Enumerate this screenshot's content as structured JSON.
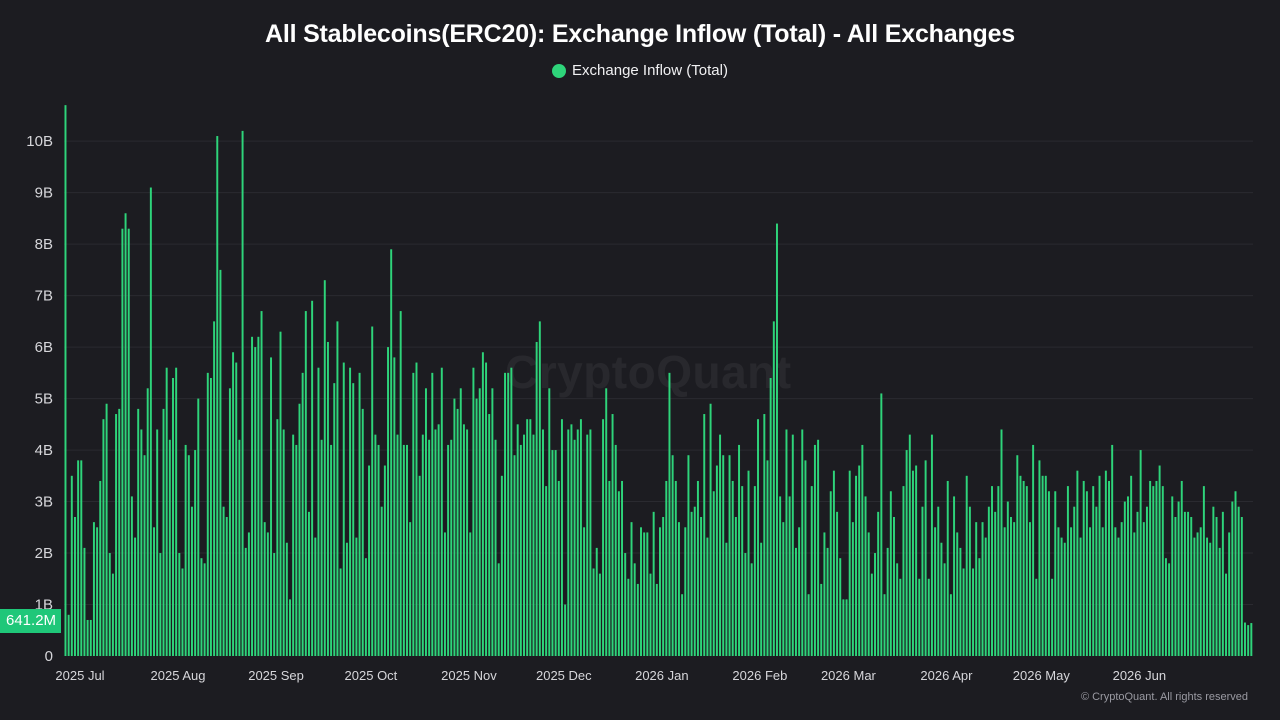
{
  "colors": {
    "background": "#1c1c21",
    "bar": "#2ed47a",
    "grid": "#2a2a30",
    "axis_text": "#d6d6da",
    "badge": "#1fc779"
  },
  "legend": {
    "label": "Exchange Inflow (Total)"
  },
  "current_value_label": "641.2M",
  "footer": {
    "text": "© CryptoQuant. All rights reserved"
  },
  "watermark": "CryptoQuant",
  "chart_data": {
    "type": "bar",
    "title": "All Stablecoins(ERC20): Exchange Inflow (Total) - All Exchanges",
    "series_name": "Exchange Inflow (Total)",
    "unit": "USD",
    "ylim": [
      0,
      10800000000
    ],
    "y_ticks": [
      {
        "value": 0,
        "label": "0"
      },
      {
        "value": 1000000000,
        "label": "1B"
      },
      {
        "value": 2000000000,
        "label": "2B"
      },
      {
        "value": 3000000000,
        "label": "3B"
      },
      {
        "value": 4000000000,
        "label": "4B"
      },
      {
        "value": 5000000000,
        "label": "5B"
      },
      {
        "value": 6000000000,
        "label": "6B"
      },
      {
        "value": 7000000000,
        "label": "7B"
      },
      {
        "value": 8000000000,
        "label": "8B"
      },
      {
        "value": 9000000000,
        "label": "9B"
      },
      {
        "value": 10000000000,
        "label": "10B"
      }
    ],
    "x_ticks": [
      {
        "index": 0,
        "label": "2025 Jul"
      },
      {
        "index": 31,
        "label": "2025 Aug"
      },
      {
        "index": 62,
        "label": "2025 Sep"
      },
      {
        "index": 92,
        "label": "2025 Oct"
      },
      {
        "index": 123,
        "label": "2025 Nov"
      },
      {
        "index": 153,
        "label": "2025 Dec"
      },
      {
        "index": 184,
        "label": "2026 Jan"
      },
      {
        "index": 215,
        "label": "2026 Feb"
      },
      {
        "index": 243,
        "label": "2026 Mar"
      },
      {
        "index": 274,
        "label": "2026 Apr"
      },
      {
        "index": 304,
        "label": "2026 May"
      },
      {
        "index": 335,
        "label": "2026 Jun"
      }
    ],
    "grid": true,
    "legend_position": "top-center",
    "x_start": "2025-07-01",
    "x_end": "2026-06-28",
    "values_billion": [
      10.7,
      0.8,
      3.5,
      2.7,
      3.8,
      3.8,
      2.1,
      0.7,
      0.7,
      2.6,
      2.5,
      3.4,
      4.6,
      4.9,
      2,
      1.6,
      4.7,
      4.8,
      8.3,
      8.6,
      8.3,
      3.1,
      2.3,
      4.8,
      4.4,
      3.9,
      5.2,
      9.1,
      2.5,
      4.4,
      2,
      4.8,
      5.6,
      4.2,
      5.4,
      5.6,
      2,
      1.7,
      4.1,
      3.9,
      2.9,
      4,
      5,
      1.9,
      1.8,
      5.5,
      5.4,
      6.5,
      10.1,
      7.5,
      2.9,
      2.7,
      5.2,
      5.9,
      5.7,
      4.2,
      10.2,
      2.1,
      2.4,
      6.2,
      6,
      6.2,
      6.7,
      2.6,
      2.4,
      5.8,
      2,
      4.6,
      6.3,
      4.4,
      2.2,
      1.1,
      4.3,
      4.1,
      4.9,
      5.5,
      6.7,
      2.8,
      6.9,
      2.3,
      5.6,
      4.2,
      7.3,
      6.1,
      4.1,
      5.3,
      6.5,
      1.7,
      5.7,
      2.2,
      5.6,
      5.3,
      2.3,
      5.5,
      4.8,
      1.9,
      3.7,
      6.4,
      4.3,
      4.1,
      2.9,
      3.7,
      6,
      7.9,
      5.8,
      4.3,
      6.7,
      4.1,
      4.1,
      2.6,
      5.5,
      5.7,
      3.5,
      4.3,
      5.2,
      4.2,
      5.5,
      4.4,
      4.5,
      5.6,
      2.4,
      4.1,
      4.2,
      5,
      4.8,
      5.2,
      4.5,
      4.4,
      2.4,
      5.6,
      5,
      5.2,
      5.9,
      5.7,
      4.7,
      5.2,
      4.2,
      1.8,
      3.5,
      5.5,
      5.5,
      5.6,
      3.9,
      4.5,
      4.1,
      4.3,
      4.6,
      4.6,
      4.3,
      6.1,
      6.5,
      4.4,
      3.3,
      5.2,
      4,
      4,
      3.4,
      4.6,
      1,
      4.4,
      4.5,
      4.2,
      4.4,
      4.6,
      2.5,
      4.3,
      4.4,
      1.7,
      2.1,
      1.6,
      4.6,
      5.2,
      3.4,
      4.7,
      4.1,
      3.2,
      3.4,
      2,
      1.5,
      2.6,
      1.8,
      1.4,
      2.5,
      2.4,
      2.4,
      1.6,
      2.8,
      1.4,
      2.5,
      2.7,
      3.4,
      5.5,
      3.9,
      3.4,
      2.6,
      1.2,
      2.5,
      3.9,
      2.8,
      2.9,
      3.4,
      2.7,
      4.7,
      2.3,
      4.9,
      3.2,
      3.7,
      4.3,
      3.9,
      2.2,
      3.9,
      3.4,
      2.7,
      4.1,
      3.3,
      2,
      3.6,
      1.8,
      3.3,
      4.6,
      2.2,
      4.7,
      3.8,
      5.4,
      6.5,
      8.4,
      3.1,
      2.6,
      4.4,
      3.1,
      4.3,
      2.1,
      2.5,
      4.4,
      3.8,
      1.2,
      3.3,
      4.1,
      4.2,
      1.4,
      2.4,
      2.1,
      3.2,
      3.6,
      2.8,
      1.9,
      1.1,
      1.1,
      3.6,
      2.6,
      3.5,
      3.7,
      4.1,
      3.1,
      2.4,
      1.6,
      2,
      2.8,
      5.1,
      1.2,
      2.1,
      3.2,
      2.7,
      1.8,
      1.5,
      3.3,
      4,
      4.3,
      3.6,
      3.7,
      1.5,
      2.9,
      3.8,
      1.5,
      4.3,
      2.5,
      2.9,
      2.2,
      1.8,
      3.4,
      1.2,
      3.1,
      2.4,
      2.1,
      1.7,
      3.5,
      2.9,
      1.7,
      2.6,
      1.9,
      2.6,
      2.3,
      2.9,
      3.3,
      2.8,
      3.3,
      4.4,
      2.5,
      3,
      2.7,
      2.6,
      3.9,
      3.5,
      3.4,
      3.3,
      2.6,
      4.1,
      1.5,
      3.8,
      3.5,
      3.5,
      3.2,
      1.5,
      3.2,
      2.5,
      2.3,
      2.2,
      3.3,
      2.5,
      2.9,
      3.6,
      2.3,
      3.4,
      3.2,
      2.5,
      3.3,
      2.9,
      3.5,
      2.5,
      3.6,
      3.4,
      4.1,
      2.5,
      2.3,
      2.6,
      3,
      3.1,
      3.5,
      2.4,
      2.8,
      4,
      2.6,
      2.9,
      3.4,
      3.3,
      3.4,
      3.7,
      3.3,
      1.9,
      1.8,
      3.1,
      2.7,
      3,
      3.4,
      2.8,
      2.8,
      2.7,
      2.3,
      2.4,
      2.5,
      3.3,
      2.3,
      2.2,
      2.9,
      2.7,
      2.1,
      2.8,
      1.6,
      2.4,
      3,
      3.2,
      2.9,
      2.7,
      0.65,
      0.6,
      0.64
    ]
  }
}
